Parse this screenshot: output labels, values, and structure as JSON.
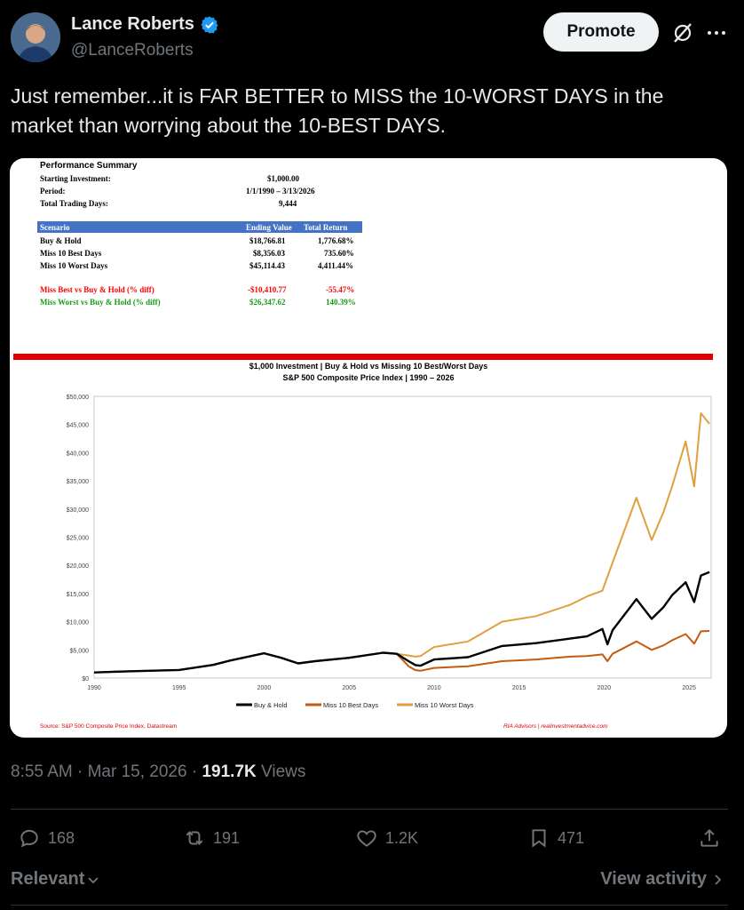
{
  "author": {
    "name": "Lance Roberts",
    "handle": "@LanceRoberts"
  },
  "header": {
    "promote_label": "Promote"
  },
  "tweet": {
    "text": "Just remember...it is FAR BETTER to MISS the 10-WORST DAYS in the market than worrying about the 10-BEST DAYS."
  },
  "summary": {
    "title": "Performance Summary",
    "rows": [
      {
        "label": "Starting Investment:",
        "value": "$1,000.00"
      },
      {
        "label": "Period:",
        "value": "1/1/1990 – 3/13/2026"
      },
      {
        "label": "Total Trading Days:",
        "value": "9,444"
      }
    ],
    "table_headers": [
      "Scenario",
      "Ending Value",
      "Total Return"
    ],
    "table_rows": [
      [
        "Buy & Hold",
        "$18,766.81",
        "1,776.68%"
      ],
      [
        "Miss 10 Best Days",
        "$8,356.03",
        "735.60%"
      ],
      [
        "Miss 10 Worst Days",
        "$45,114.43",
        "4,411.44%"
      ]
    ],
    "diff_rows": [
      {
        "label": "Miss Best vs Buy & Hold (% diff)",
        "value": "-$10,410.77",
        "pct": "-55.47%",
        "color": "#ff0000"
      },
      {
        "label": "Miss Worst vs Buy & Hold (% diff)",
        "value": "$26,347.62",
        "pct": "140.39%",
        "color": "#1a9a1a"
      }
    ]
  },
  "chart_data": {
    "type": "line",
    "title": "$1,000 Investment  |  Buy & Hold vs Missing 10 Best/Worst Days",
    "subtitle": "S&P 500 Composite Price Index  |  1990 – 2026",
    "x_ticks": [
      "1990",
      "1995",
      "2000",
      "2005",
      "2010",
      "2015",
      "2020",
      "2025"
    ],
    "y_ticks": [
      "$0",
      "$5,000",
      "$10,000",
      "$15,000",
      "$20,000",
      "$25,000",
      "$30,000",
      "$35,000",
      "$40,000",
      "$45,000",
      "$50,000"
    ],
    "xlim": [
      1990,
      2026.3
    ],
    "ylim": [
      0,
      50000
    ],
    "series": [
      {
        "name": "Buy & Hold",
        "color": "#000000",
        "x": [
          1990,
          1992,
          1995,
          1997,
          1998,
          2000,
          2001,
          2002,
          2003,
          2005,
          2007,
          2007.8,
          2008.5,
          2008.9,
          2009.2,
          2010,
          2012,
          2014,
          2016,
          2018,
          2019,
          2019.9,
          2020.2,
          2020.5,
          2021.9,
          2022.8,
          2023.5,
          2024,
          2024.8,
          2025.3,
          2025.7,
          2026.2
        ],
        "y": [
          1000,
          1200,
          1430,
          2330,
          3100,
          4400,
          3600,
          2600,
          3000,
          3600,
          4500,
          4300,
          3000,
          2300,
          2200,
          3300,
          3700,
          5700,
          6200,
          7000,
          7400,
          8700,
          6000,
          8500,
          14000,
          10500,
          12600,
          14700,
          17000,
          13500,
          18200,
          18800
        ]
      },
      {
        "name": "Miss 10 Best Days",
        "color": "#c55a11",
        "x": [
          1990,
          1992,
          1995,
          1997,
          1998,
          2000,
          2001,
          2002,
          2003,
          2005,
          2007,
          2007.8,
          2008.5,
          2008.9,
          2009.2,
          2010,
          2012,
          2014,
          2016,
          2018,
          2019,
          2019.9,
          2020.2,
          2020.5,
          2021.9,
          2022.8,
          2023.5,
          2024,
          2024.8,
          2025.3,
          2025.7,
          2026.2
        ],
        "y": [
          1000,
          1200,
          1430,
          2330,
          3100,
          4400,
          3600,
          2600,
          3000,
          3600,
          4500,
          4300,
          2100,
          1400,
          1300,
          1800,
          2100,
          3000,
          3300,
          3800,
          3900,
          4200,
          3000,
          4300,
          6500,
          5000,
          5800,
          6700,
          7800,
          6100,
          8300,
          8356
        ]
      },
      {
        "name": "Miss 10 Worst Days",
        "color": "#e0a040",
        "x": [
          1990,
          1992,
          1995,
          1997,
          1998,
          2000,
          2001,
          2002,
          2003,
          2005,
          2007,
          2007.8,
          2008.5,
          2008.9,
          2009.2,
          2010,
          2012,
          2014,
          2016,
          2018,
          2019,
          2019.9,
          2020.2,
          2020.5,
          2021.9,
          2022.8,
          2023.5,
          2024,
          2024.8,
          2025.3,
          2025.7,
          2026.2
        ],
        "y": [
          1000,
          1200,
          1430,
          2330,
          3100,
          4400,
          3600,
          2600,
          3000,
          3600,
          4500,
          4300,
          4000,
          3800,
          3900,
          5500,
          6500,
          10000,
          11000,
          13000,
          14500,
          15500,
          18000,
          20500,
          32000,
          24500,
          29500,
          34000,
          42000,
          34000,
          47000,
          45114
        ]
      }
    ],
    "legend_placement": "bottom",
    "source": "Source: S&P 500 Composite Price Index, Datastream",
    "credit": "RIA Advisors  |  realinvestmentadvice.com"
  },
  "meta": {
    "time": "8:55 AM",
    "date": "Mar 15, 2026",
    "views_count": "191.7K",
    "views_label": "Views"
  },
  "actions": {
    "replies": "168",
    "reposts": "191",
    "likes": "1.2K",
    "bookmarks": "471"
  },
  "footer": {
    "sort_label": "Relevant",
    "view_activity_label": "View activity"
  },
  "colors": {
    "accent": "#1d9bf0",
    "muted": "#71767b",
    "table_header": "#4472c4",
    "red_bar": "#e00000"
  }
}
